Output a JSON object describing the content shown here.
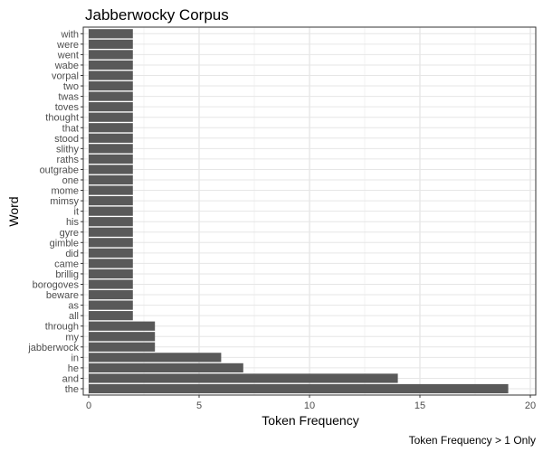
{
  "chart_data": {
    "type": "bar",
    "orientation": "horizontal",
    "title": "Jabberwocky Corpus",
    "xlabel": "Token Frequency",
    "ylabel": "Word",
    "caption": "Token Frequency > 1 Only",
    "xlim": [
      0,
      20
    ],
    "x_ticks": [
      0,
      5,
      10,
      15,
      20
    ],
    "grid": true,
    "bar_color": "#595959",
    "categories": [
      "the",
      "and",
      "he",
      "in",
      "jabberwock",
      "my",
      "through",
      "all",
      "as",
      "beware",
      "borogoves",
      "brillig",
      "came",
      "did",
      "gimble",
      "gyre",
      "his",
      "it",
      "mimsy",
      "mome",
      "one",
      "outgrabe",
      "raths",
      "slithy",
      "stood",
      "that",
      "thought",
      "toves",
      "twas",
      "two",
      "vorpal",
      "wabe",
      "went",
      "were",
      "with"
    ],
    "values": [
      19,
      14,
      7,
      6,
      3,
      3,
      3,
      2,
      2,
      2,
      2,
      2,
      2,
      2,
      2,
      2,
      2,
      2,
      2,
      2,
      2,
      2,
      2,
      2,
      2,
      2,
      2,
      2,
      2,
      2,
      2,
      2,
      2,
      2,
      2
    ]
  }
}
